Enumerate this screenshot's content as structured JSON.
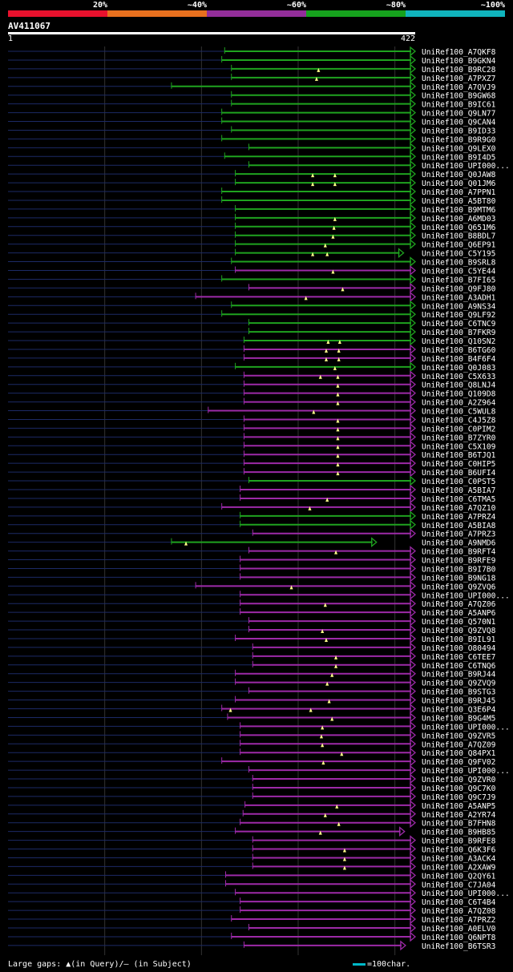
{
  "legend": {
    "segments": [
      {
        "label": "20%",
        "color": "#e8112d"
      },
      {
        "label": "~40%",
        "color": "#e8701e"
      },
      {
        "label": "~60%",
        "color": "#932e9a"
      },
      {
        "label": "~80%",
        "color": "#16a21d"
      },
      {
        "label": "~100%",
        "color": "#10b4bd"
      }
    ]
  },
  "query": {
    "name": "AV411067",
    "start": "1",
    "end": "422",
    "length": 422
  },
  "colors": {
    "green": "#1fa31f",
    "purple": "#9d2aa8",
    "query_line": "#1c2a66",
    "marker": "#ffff88"
  },
  "footer": {
    "gaps_text": "Large gaps: ▲(in Query)/– (in Subject)",
    "scale_text": "=100char."
  },
  "hits": [
    {
      "name": "UniRef100_A7QKF8",
      "color": "green",
      "start": 225,
      "end": 422,
      "m": []
    },
    {
      "name": "UniRef100_B9GKN4",
      "color": "green",
      "start": 222,
      "end": 422,
      "m": []
    },
    {
      "name": "UniRef100_B9RC28",
      "color": "green",
      "start": 232,
      "end": 422,
      "m": [
        322
      ]
    },
    {
      "name": "UniRef100_A7PXZ7",
      "color": "green",
      "start": 232,
      "end": 422,
      "m": [
        320
      ]
    },
    {
      "name": "UniRef100_A7QVJ9",
      "color": "green",
      "start": 170,
      "end": 422,
      "m": []
    },
    {
      "name": "UniRef100_B9GW68",
      "color": "green",
      "start": 232,
      "end": 422,
      "m": []
    },
    {
      "name": "UniRef100_B9IC61",
      "color": "green",
      "start": 232,
      "end": 422,
      "m": []
    },
    {
      "name": "UniRef100_Q9LN77",
      "color": "green",
      "start": 222,
      "end": 422,
      "m": []
    },
    {
      "name": "UniRef100_Q9CAN4",
      "color": "green",
      "start": 222,
      "end": 422,
      "m": []
    },
    {
      "name": "UniRef100_B9ID33",
      "color": "green",
      "start": 232,
      "end": 422,
      "m": []
    },
    {
      "name": "UniRef100_B9R9G0",
      "color": "green",
      "start": 222,
      "end": 422,
      "m": []
    },
    {
      "name": "UniRef100_Q9LEX0",
      "color": "green",
      "start": 250,
      "end": 422,
      "m": []
    },
    {
      "name": "UniRef100_B9I4D5",
      "color": "green",
      "start": 225,
      "end": 422,
      "m": []
    },
    {
      "name": "UniRef100_UPI000...",
      "color": "green",
      "start": 250,
      "end": 422,
      "m": []
    },
    {
      "name": "UniRef100_Q0JAW8",
      "color": "green",
      "start": 236,
      "end": 422,
      "m": [
        316,
        339
      ]
    },
    {
      "name": "UniRef100_Q01JM6",
      "color": "green",
      "start": 236,
      "end": 422,
      "m": [
        316,
        339
      ]
    },
    {
      "name": "UniRef100_A7PPN1",
      "color": "green",
      "start": 222,
      "end": 422,
      "m": []
    },
    {
      "name": "UniRef100_A5BT80",
      "color": "green",
      "start": 222,
      "end": 422,
      "m": []
    },
    {
      "name": "UniRef100_B9MTM6",
      "color": "green",
      "start": 236,
      "end": 422,
      "m": []
    },
    {
      "name": "UniRef100_A6MD03",
      "color": "green",
      "start": 236,
      "end": 422,
      "m": [
        339
      ]
    },
    {
      "name": "UniRef100_Q651M6",
      "color": "green",
      "start": 236,
      "end": 422,
      "m": [
        338
      ]
    },
    {
      "name": "UniRef100_B8BDL7",
      "color": "green",
      "start": 236,
      "end": 422,
      "m": [
        337
      ]
    },
    {
      "name": "UniRef100_Q6EP91",
      "color": "green",
      "start": 236,
      "end": 422,
      "m": [
        329
      ]
    },
    {
      "name": "UniRef100_C5Y195",
      "color": "green",
      "start": 236,
      "end": 410,
      "m": [
        316,
        331
      ]
    },
    {
      "name": "UniRef100_B9SRL8",
      "color": "green",
      "start": 232,
      "end": 422,
      "m": []
    },
    {
      "name": "UniRef100_C5YE44",
      "color": "purple",
      "start": 236,
      "end": 422,
      "m": [
        337
      ]
    },
    {
      "name": "UniRef100_B7FI65",
      "color": "green",
      "start": 222,
      "end": 422,
      "m": []
    },
    {
      "name": "UniRef100_Q9FJ80",
      "color": "purple",
      "start": 250,
      "end": 422,
      "m": [
        347
      ]
    },
    {
      "name": "UniRef100_A3ADH1",
      "color": "purple",
      "start": 195,
      "end": 422,
      "m": [
        309
      ]
    },
    {
      "name": "UniRef100_A9NS34",
      "color": "green",
      "start": 232,
      "end": 422,
      "m": []
    },
    {
      "name": "UniRef100_Q9LF92",
      "color": "green",
      "start": 222,
      "end": 422,
      "m": []
    },
    {
      "name": "UniRef100_C6TNC9",
      "color": "green",
      "start": 250,
      "end": 422,
      "m": []
    },
    {
      "name": "UniRef100_B7FKR9",
      "color": "green",
      "start": 250,
      "end": 422,
      "m": []
    },
    {
      "name": "UniRef100_Q10SN2",
      "color": "green",
      "start": 245,
      "end": 422,
      "m": [
        332,
        344
      ]
    },
    {
      "name": "UniRef100_B6TG60",
      "color": "purple",
      "start": 245,
      "end": 422,
      "m": [
        330,
        343
      ]
    },
    {
      "name": "UniRef100_B4F6F4",
      "color": "purple",
      "start": 245,
      "end": 422,
      "m": [
        330,
        343
      ]
    },
    {
      "name": "UniRef100_Q0J083",
      "color": "green",
      "start": 236,
      "end": 422,
      "m": [
        339
      ]
    },
    {
      "name": "UniRef100_C5X633",
      "color": "purple",
      "start": 245,
      "end": 422,
      "m": [
        324,
        342
      ]
    },
    {
      "name": "UniRef100_Q8LNJ4",
      "color": "purple",
      "start": 245,
      "end": 422,
      "m": [
        342
      ]
    },
    {
      "name": "UniRef100_Q109D8",
      "color": "purple",
      "start": 245,
      "end": 422,
      "m": [
        342
      ]
    },
    {
      "name": "UniRef100_A2Z964",
      "color": "purple",
      "start": 245,
      "end": 422,
      "m": [
        342
      ]
    },
    {
      "name": "UniRef100_C5WUL8",
      "color": "purple",
      "start": 208,
      "end": 422,
      "m": [
        317
      ]
    },
    {
      "name": "UniRef100_C4J5Z8",
      "color": "purple",
      "start": 245,
      "end": 422,
      "m": [
        342
      ]
    },
    {
      "name": "UniRef100_C0PIM2",
      "color": "purple",
      "start": 245,
      "end": 422,
      "m": [
        342
      ]
    },
    {
      "name": "UniRef100_B7ZYR0",
      "color": "purple",
      "start": 245,
      "end": 422,
      "m": [
        342
      ]
    },
    {
      "name": "UniRef100_C5X109",
      "color": "purple",
      "start": 245,
      "end": 422,
      "m": [
        342
      ]
    },
    {
      "name": "UniRef100_B6TJQ1",
      "color": "purple",
      "start": 245,
      "end": 422,
      "m": [
        342
      ]
    },
    {
      "name": "UniRef100_C0HIP5",
      "color": "purple",
      "start": 245,
      "end": 422,
      "m": [
        342
      ]
    },
    {
      "name": "UniRef100_B6UFI4",
      "color": "purple",
      "start": 245,
      "end": 422,
      "m": [
        342
      ]
    },
    {
      "name": "UniRef100_C0PST5",
      "color": "green",
      "start": 250,
      "end": 422,
      "m": []
    },
    {
      "name": "UniRef100_A5BIA7",
      "color": "purple",
      "start": 241,
      "end": 422,
      "m": []
    },
    {
      "name": "UniRef100_C6TMA5",
      "color": "purple",
      "start": 241,
      "end": 422,
      "m": [
        331
      ]
    },
    {
      "name": "UniRef100_A7QZ10",
      "color": "purple",
      "start": 222,
      "end": 422,
      "m": [
        313
      ]
    },
    {
      "name": "UniRef100_A7PRZ4",
      "color": "green",
      "start": 241,
      "end": 422,
      "m": []
    },
    {
      "name": "UniRef100_A5BIA8",
      "color": "green",
      "start": 241,
      "end": 422,
      "m": []
    },
    {
      "name": "UniRef100_A7PRZ3",
      "color": "purple",
      "start": 254,
      "end": 422,
      "m": []
    },
    {
      "name": "UniRef100_A9NMD6",
      "color": "green",
      "start": 170,
      "end": 382,
      "m": [
        185
      ]
    },
    {
      "name": "UniRef100_B9RFT4",
      "color": "purple",
      "start": 250,
      "end": 422,
      "m": [
        340
      ]
    },
    {
      "name": "UniRef100_B9RFE9",
      "color": "purple",
      "start": 241,
      "end": 422,
      "m": []
    },
    {
      "name": "UniRef100_B9I7B0",
      "color": "purple",
      "start": 241,
      "end": 422,
      "m": []
    },
    {
      "name": "UniRef100_B9NG18",
      "color": "purple",
      "start": 241,
      "end": 422,
      "m": []
    },
    {
      "name": "UniRef100_Q9ZVQ6",
      "color": "purple",
      "start": 195,
      "end": 422,
      "m": [
        294
      ]
    },
    {
      "name": "UniRef100_UPI000...",
      "color": "purple",
      "start": 241,
      "end": 422,
      "m": []
    },
    {
      "name": "UniRef100_A7QZ06",
      "color": "purple",
      "start": 241,
      "end": 422,
      "m": [
        329
      ]
    },
    {
      "name": "UniRef100_A5ANP6",
      "color": "purple",
      "start": 241,
      "end": 422,
      "m": []
    },
    {
      "name": "UniRef100_Q570N1",
      "color": "purple",
      "start": 250,
      "end": 422,
      "m": []
    },
    {
      "name": "UniRef100_Q9ZVQ8",
      "color": "purple",
      "start": 250,
      "end": 422,
      "m": [
        326
      ]
    },
    {
      "name": "UniRef100_B9IL91",
      "color": "purple",
      "start": 236,
      "end": 422,
      "m": [
        330
      ]
    },
    {
      "name": "UniRef100_O80494",
      "color": "purple",
      "start": 254,
      "end": 422,
      "m": []
    },
    {
      "name": "UniRef100_C6TEE7",
      "color": "purple",
      "start": 254,
      "end": 422,
      "m": [
        340
      ]
    },
    {
      "name": "UniRef100_C6TNQ6",
      "color": "purple",
      "start": 254,
      "end": 422,
      "m": [
        340
      ]
    },
    {
      "name": "UniRef100_B9RJ44",
      "color": "purple",
      "start": 236,
      "end": 422,
      "m": [
        336
      ]
    },
    {
      "name": "UniRef100_Q9ZVQ9",
      "color": "purple",
      "start": 236,
      "end": 422,
      "m": [
        331
      ]
    },
    {
      "name": "UniRef100_B9STG3",
      "color": "purple",
      "start": 250,
      "end": 422,
      "m": []
    },
    {
      "name": "UniRef100_B9RJ45",
      "color": "purple",
      "start": 236,
      "end": 422,
      "m": [
        333
      ]
    },
    {
      "name": "UniRef100_Q3E6P4",
      "color": "purple",
      "start": 222,
      "end": 422,
      "m": [
        231,
        314
      ]
    },
    {
      "name": "UniRef100_B9G4M5",
      "color": "purple",
      "start": 228,
      "end": 422,
      "m": [
        336
      ]
    },
    {
      "name": "UniRef100_UPI000...",
      "color": "purple",
      "start": 241,
      "end": 422,
      "m": [
        326
      ]
    },
    {
      "name": "UniRef100_Q9ZVR5",
      "color": "purple",
      "start": 241,
      "end": 422,
      "m": [
        325
      ]
    },
    {
      "name": "UniRef100_A7QZ09",
      "color": "purple",
      "start": 241,
      "end": 422,
      "m": [
        326
      ]
    },
    {
      "name": "UniRef100_Q84PX1",
      "color": "purple",
      "start": 241,
      "end": 422,
      "m": [
        346
      ]
    },
    {
      "name": "UniRef100_Q9FV02",
      "color": "purple",
      "start": 222,
      "end": 422,
      "m": [
        327
      ]
    },
    {
      "name": "UniRef100_UPI000...",
      "color": "purple",
      "start": 250,
      "end": 422,
      "m": []
    },
    {
      "name": "UniRef100_Q9ZVR0",
      "color": "purple",
      "start": 254,
      "end": 422,
      "m": []
    },
    {
      "name": "UniRef100_Q9C7K0",
      "color": "purple",
      "start": 254,
      "end": 422,
      "m": []
    },
    {
      "name": "UniRef100_Q9C7J9",
      "color": "purple",
      "start": 254,
      "end": 422,
      "m": []
    },
    {
      "name": "UniRef100_A5ANP5",
      "color": "purple",
      "start": 246,
      "end": 422,
      "m": [
        341
      ]
    },
    {
      "name": "UniRef100_A2YR74",
      "color": "purple",
      "start": 244,
      "end": 422,
      "m": [
        329
      ]
    },
    {
      "name": "UniRef100_B7FHN8",
      "color": "purple",
      "start": 241,
      "end": 422,
      "m": [
        343
      ]
    },
    {
      "name": "UniRef100_B9HB85",
      "color": "purple",
      "start": 236,
      "end": 411,
      "m": [
        324
      ]
    },
    {
      "name": "UniRef100_B9RFE8",
      "color": "purple",
      "start": 254,
      "end": 422,
      "m": []
    },
    {
      "name": "UniRef100_Q6K3F6",
      "color": "purple",
      "start": 254,
      "end": 422,
      "m": [
        349
      ]
    },
    {
      "name": "UniRef100_A3ACK4",
      "color": "purple",
      "start": 254,
      "end": 422,
      "m": [
        349
      ]
    },
    {
      "name": "UniRef100_A2XAW9",
      "color": "purple",
      "start": 254,
      "end": 422,
      "m": [
        349
      ]
    },
    {
      "name": "UniRef100_Q2QY61",
      "color": "purple",
      "start": 226,
      "end": 422,
      "m": []
    },
    {
      "name": "UniRef100_C7JA04",
      "color": "purple",
      "start": 226,
      "end": 422,
      "m": []
    },
    {
      "name": "UniRef100_UPI000...",
      "color": "purple",
      "start": 236,
      "end": 422,
      "m": []
    },
    {
      "name": "UniRef100_C6T4B4",
      "color": "purple",
      "start": 241,
      "end": 422,
      "m": []
    },
    {
      "name": "UniRef100_A7QZ08",
      "color": "purple",
      "start": 241,
      "end": 422,
      "m": []
    },
    {
      "name": "UniRef100_A7PRZ2",
      "color": "purple",
      "start": 232,
      "end": 422,
      "m": []
    },
    {
      "name": "UniRef100_A0ELV0",
      "color": "purple",
      "start": 250,
      "end": 422,
      "m": []
    },
    {
      "name": "UniRef100_Q6NPT8",
      "color": "purple",
      "start": 232,
      "end": 422,
      "m": []
    },
    {
      "name": "UniRef100_B6TSR3",
      "color": "purple",
      "start": 245,
      "end": 412,
      "m": []
    }
  ]
}
